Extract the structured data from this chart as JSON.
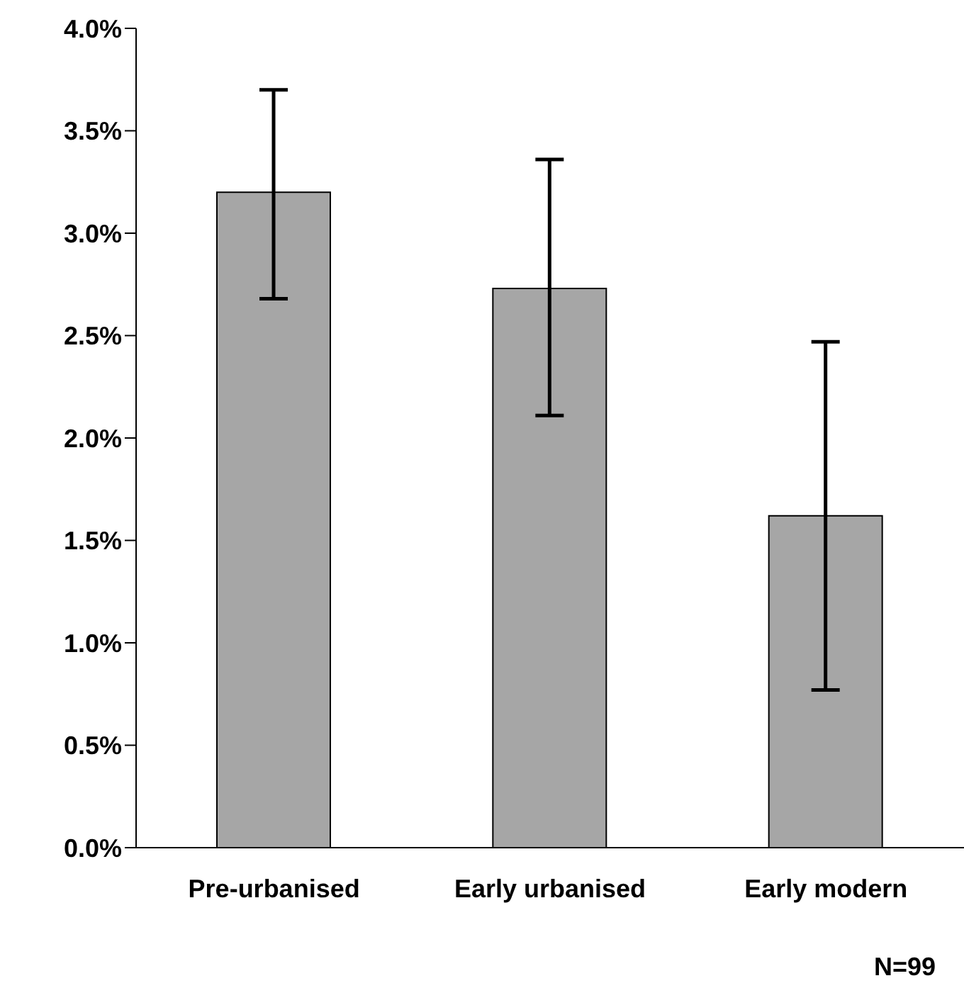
{
  "chart_data": {
    "type": "bar",
    "categories": [
      "Pre-urbanised",
      "Early urbanised",
      "Early modern"
    ],
    "values": [
      3.2,
      2.73,
      1.62
    ],
    "color": "#a6a6a6",
    "errors": [
      [
        2.68,
        3.7
      ],
      [
        2.11,
        3.36
      ],
      [
        0.77,
        2.47
      ]
    ],
    "ylim": [
      0,
      4
    ],
    "yticks": [
      {
        "value": 0,
        "label": "0.0%"
      },
      {
        "value": 0.5,
        "label": "0.5%"
      },
      {
        "value": 1,
        "label": "1.0%"
      },
      {
        "value": 1.5,
        "label": "1.5%"
      },
      {
        "value": 2,
        "label": "2.0%"
      },
      {
        "value": 2.5,
        "label": "2.5%"
      },
      {
        "value": 3,
        "label": "3.0%"
      },
      {
        "value": 3.5,
        "label": "3.5%"
      },
      {
        "value": 4,
        "label": "4.0%"
      }
    ],
    "annotations": [
      "N=99"
    ],
    "grid": false,
    "legend": false
  }
}
